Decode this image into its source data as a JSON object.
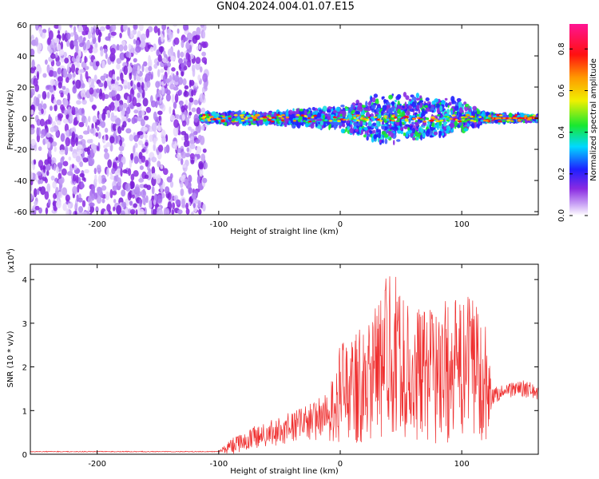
{
  "title": "GN04.2024.004.01.07.E15",
  "colors": {
    "snr_line": "#ef3030",
    "spectrogram_noise": "#8a2be2",
    "background": "#ffffff"
  },
  "colorbar": {
    "label": "Normalized spectral amplitude",
    "ticks": [
      {
        "value": 0.0,
        "label": "0.0"
      },
      {
        "value": 0.2,
        "label": "0.2"
      },
      {
        "value": 0.4,
        "label": "0.4"
      },
      {
        "value": 0.6,
        "label": "0.6"
      },
      {
        "value": 0.8,
        "label": "0.8"
      }
    ],
    "range": [
      0,
      0.92
    ],
    "scheme": "rainbow (white-violet-blue-cyan-green-yellow-orange-red-magenta)"
  },
  "chart_data": [
    {
      "type": "heatmap",
      "xlabel": "Height of straight line (km)",
      "ylabel": "Frequency (Hz)",
      "xlim": [
        -255,
        163
      ],
      "ylim": [
        -62,
        60
      ],
      "x_ticks": [
        {
          "value": -200,
          "label": "-200"
        },
        {
          "value": -100,
          "label": "-100"
        },
        {
          "value": 0,
          "label": "0"
        },
        {
          "value": 100,
          "label": "100"
        }
      ],
      "y_ticks": [
        {
          "value": -60,
          "label": "-60"
        },
        {
          "value": -40,
          "label": "-40"
        },
        {
          "value": -20,
          "label": "-20"
        },
        {
          "value": 0,
          "label": "0"
        },
        {
          "value": 20,
          "label": "20"
        },
        {
          "value": 40,
          "label": "40"
        },
        {
          "value": 60,
          "label": "60"
        }
      ],
      "regions": {
        "noise_region_x": [
          -255,
          -110
        ],
        "signal_band_x": [
          -115,
          163
        ],
        "signal_center_freq": 0,
        "signal_halfwidth_profile": [
          {
            "x": -110,
            "hw": 4
          },
          {
            "x": -60,
            "hw": 4
          },
          {
            "x": 0,
            "hw": 8
          },
          {
            "x": 30,
            "hw": 18
          },
          {
            "x": 60,
            "hw": 16
          },
          {
            "x": 100,
            "hw": 12
          },
          {
            "x": 120,
            "hw": 3
          },
          {
            "x": 163,
            "hw": 2
          }
        ]
      }
    },
    {
      "type": "line",
      "xlabel": "Height of straight line (km)",
      "ylabel": "SNR (10 * v/v)",
      "y_multiplier_label": "(x10",
      "y_multiplier_exp": "4",
      "xlim": [
        -255,
        163
      ],
      "ylim": [
        0,
        4.35
      ],
      "x_ticks": [
        {
          "value": -200,
          "label": "-200"
        },
        {
          "value": -100,
          "label": "-100"
        },
        {
          "value": 0,
          "label": "0"
        },
        {
          "value": 100,
          "label": "100"
        }
      ],
      "y_ticks": [
        {
          "value": 0,
          "label": "0"
        },
        {
          "value": 1,
          "label": "1"
        },
        {
          "value": 2,
          "label": "2"
        },
        {
          "value": 3,
          "label": "3"
        },
        {
          "value": 4,
          "label": "4"
        }
      ],
      "envelope": {
        "x": [
          -255,
          -100,
          -90,
          -70,
          -50,
          -30,
          -10,
          0,
          10,
          20,
          30,
          40,
          45,
          50,
          60,
          70,
          80,
          90,
          100,
          110,
          120,
          125,
          130,
          140,
          150,
          163
        ],
        "lower": [
          0.05,
          0.05,
          0.0,
          0.1,
          0.2,
          0.3,
          0.3,
          0.2,
          0.2,
          0.3,
          0.3,
          0.4,
          0.4,
          0.3,
          0.3,
          0.3,
          0.2,
          0.2,
          0.3,
          0.3,
          0.3,
          1.1,
          1.2,
          1.3,
          1.3,
          1.2
        ],
        "upper": [
          0.07,
          0.07,
          0.35,
          0.65,
          0.85,
          1.1,
          1.4,
          2.5,
          2.8,
          3.0,
          3.5,
          4.2,
          4.35,
          3.6,
          3.4,
          3.3,
          3.4,
          3.6,
          3.5,
          3.8,
          3.0,
          1.5,
          1.6,
          1.65,
          1.7,
          1.6
        ]
      }
    }
  ]
}
